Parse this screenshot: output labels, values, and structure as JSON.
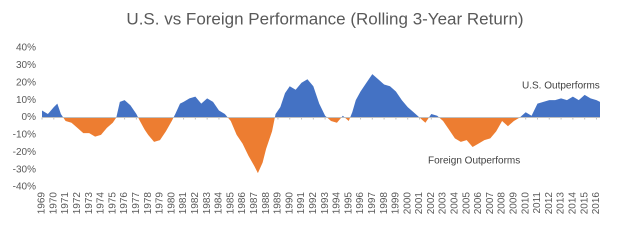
{
  "chart_data": {
    "type": "area",
    "title": "U.S. vs Foreign Performance (Rolling 3-Year Return)",
    "annotations": [
      "U.S. Outperforms",
      "Foreign Outperforms"
    ],
    "color": "#4472c4",
    "negative_color": "#ed7d31",
    "x": [
      1969,
      1969.5,
      1970,
      1970.3,
      1970.6,
      1971,
      1971.5,
      1972,
      1972.5,
      1973,
      1973.5,
      1974,
      1974.5,
      1975,
      1975.3,
      1975.6,
      1976,
      1976.5,
      1977,
      1977.3,
      1977.7,
      1978,
      1978.5,
      1979,
      1979.5,
      1980,
      1980.3,
      1980.7,
      1981,
      1981.5,
      1982,
      1982.5,
      1983,
      1983.5,
      1984,
      1984.5,
      1985,
      1985.5,
      1986,
      1986.5,
      1987,
      1987.3,
      1987.7,
      1988,
      1988.5,
      1988.8,
      1989.2,
      1989.6,
      1990,
      1990.5,
      1991,
      1991.5,
      1992,
      1992.5,
      1993,
      1993.5,
      1994,
      1994.5,
      1995,
      1995.3,
      1995.6,
      1996,
      1996.5,
      1997,
      1997.5,
      1998,
      1998.5,
      1999,
      1999.5,
      2000,
      2000.5,
      2001,
      2001.5,
      2002,
      2002.5,
      2003,
      2003.5,
      2004,
      2004.5,
      2005,
      2005.5,
      2006,
      2006.5,
      2007,
      2007.5,
      2008,
      2008.5,
      2009,
      2009.5,
      2010,
      2010.5,
      2011,
      2011.5,
      2012,
      2012.5,
      2013,
      2013.5,
      2014,
      2014.5,
      2015,
      2015.5,
      2016,
      2016.3
    ],
    "values": [
      4,
      2,
      6,
      8,
      2,
      -2,
      -3,
      -6,
      -9,
      -9,
      -11,
      -10,
      -6,
      -3,
      0,
      9,
      10,
      7,
      2,
      -2,
      -7,
      -10,
      -14,
      -13,
      -8,
      -2,
      2,
      8,
      9,
      11,
      12,
      8,
      11,
      9,
      4,
      2,
      -2,
      -10,
      -15,
      -22,
      -28,
      -32,
      -26,
      -18,
      -8,
      2,
      6,
      14,
      18,
      16,
      20,
      22,
      18,
      8,
      1,
      -2,
      -3,
      1,
      -2,
      3,
      10,
      15,
      20,
      25,
      22,
      19,
      18,
      15,
      10,
      6,
      3,
      0,
      -3,
      2,
      1,
      -2,
      -7,
      -12,
      -14,
      -13,
      -17,
      -15,
      -13,
      -12,
      -8,
      -2,
      -5,
      -2,
      0,
      3,
      1,
      8,
      9,
      10,
      10,
      11,
      10,
      12,
      10,
      13,
      11,
      10,
      9
    ],
    "xlim": [
      1969,
      2016.3
    ],
    "xticks": [
      1969,
      1970,
      1971,
      1972,
      1973,
      1974,
      1975,
      1976,
      1977,
      1978,
      1979,
      1980,
      1981,
      1982,
      1983,
      1984,
      1985,
      1986,
      1987,
      1988,
      1989,
      1990,
      1991,
      1992,
      1993,
      1994,
      1995,
      1996,
      1997,
      1998,
      1999,
      2000,
      2001,
      2002,
      2003,
      2004,
      2005,
      2006,
      2007,
      2008,
      2009,
      2010,
      2011,
      2012,
      2013,
      2014,
      2015,
      2016
    ],
    "ylim": [
      -40,
      40
    ],
    "yticks": [
      {
        "value": -40,
        "label": "-40%"
      },
      {
        "value": -30,
        "label": "-30%"
      },
      {
        "value": -20,
        "label": "-20%"
      },
      {
        "value": -10,
        "label": "-10%"
      },
      {
        "value": 0,
        "label": "0%"
      },
      {
        "value": 10,
        "label": "10%"
      },
      {
        "value": 20,
        "label": "20%"
      },
      {
        "value": 30,
        "label": "30%"
      },
      {
        "value": 40,
        "label": "40%"
      }
    ]
  }
}
